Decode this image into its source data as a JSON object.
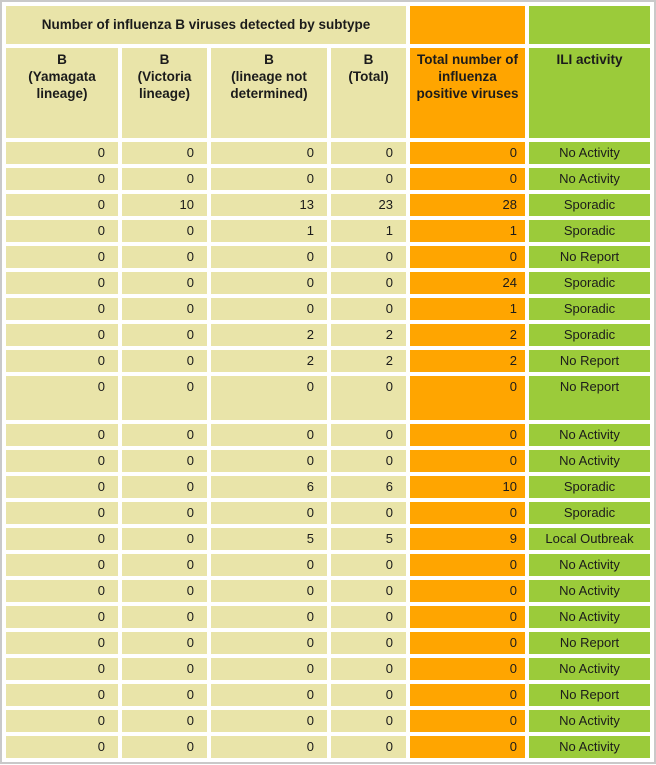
{
  "chart_data": {
    "type": "table",
    "title": "Number of influenza B viruses detected by subtype",
    "columns": [
      "B (Yamagata lineage)",
      "B (Victoria lineage)",
      "B (lineage not determined)",
      "B (Total)",
      "Total number of influenza positive viruses",
      "ILI activity"
    ],
    "rows": [
      [
        0,
        0,
        0,
        0,
        0,
        "No Activity"
      ],
      [
        0,
        0,
        0,
        0,
        0,
        "No Activity"
      ],
      [
        0,
        10,
        13,
        23,
        28,
        "Sporadic"
      ],
      [
        0,
        0,
        1,
        1,
        1,
        "Sporadic"
      ],
      [
        0,
        0,
        0,
        0,
        0,
        "No Report"
      ],
      [
        0,
        0,
        0,
        0,
        24,
        "Sporadic"
      ],
      [
        0,
        0,
        0,
        0,
        1,
        "Sporadic"
      ],
      [
        0,
        0,
        2,
        2,
        2,
        "Sporadic"
      ],
      [
        0,
        0,
        2,
        2,
        2,
        "No Report"
      ],
      [
        0,
        0,
        0,
        0,
        0,
        "No Report"
      ],
      [
        0,
        0,
        0,
        0,
        0,
        "No Activity"
      ],
      [
        0,
        0,
        0,
        0,
        0,
        "No Activity"
      ],
      [
        0,
        0,
        6,
        6,
        10,
        "Sporadic"
      ],
      [
        0,
        0,
        0,
        0,
        0,
        "Sporadic"
      ],
      [
        0,
        0,
        5,
        5,
        9,
        "Local Outbreak"
      ],
      [
        0,
        0,
        0,
        0,
        0,
        "No Activity"
      ],
      [
        0,
        0,
        0,
        0,
        0,
        "No Activity"
      ],
      [
        0,
        0,
        0,
        0,
        0,
        "No Activity"
      ],
      [
        0,
        0,
        0,
        0,
        0,
        "No Report"
      ],
      [
        0,
        0,
        0,
        0,
        0,
        "No Activity"
      ],
      [
        0,
        0,
        0,
        0,
        0,
        "No Report"
      ],
      [
        0,
        0,
        0,
        0,
        0,
        "No Activity"
      ],
      [
        0,
        0,
        0,
        0,
        0,
        "No Activity"
      ]
    ],
    "layout": {
      "tall_row_indices": [
        9
      ],
      "grid": "white gaps between cells",
      "column_colors": [
        "khaki",
        "khaki",
        "khaki",
        "khaki",
        "orange",
        "green"
      ]
    }
  },
  "header": {
    "span_title": "Number of influenza B viruses detected by\nsubtype",
    "col_yamagata": "B\n(Yamagata\nlineage)",
    "col_victoria": "B\n(Victoria\nlineage)",
    "col_undetermined": "B\n(lineage not\ndetermined)",
    "col_total": "B\n(Total)",
    "col_positive": "Total number of influenza positive viruses",
    "col_ili": "ILI activity"
  },
  "colors": {
    "khaki": "#e9e4a9",
    "orange": "#ffa500",
    "green": "#9bcb3a",
    "outer_border": "#c9c9c9",
    "text": "#1b1b1b",
    "gap": "#ffffff"
  }
}
